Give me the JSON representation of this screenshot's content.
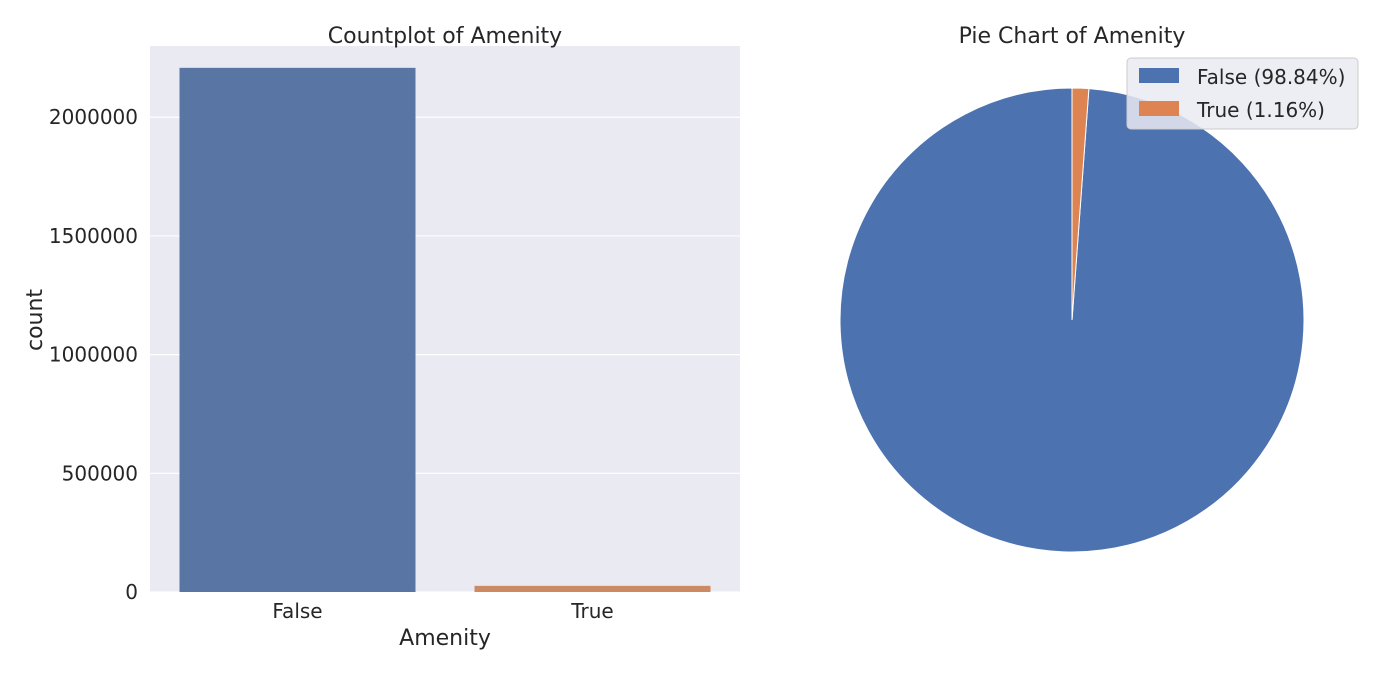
{
  "chart_data": [
    {
      "type": "bar",
      "title": "Countplot of Amenity",
      "xlabel": "Amenity",
      "ylabel": "count",
      "categories": [
        "False",
        "True"
      ],
      "values": [
        2208000,
        25900
      ],
      "colors": [
        "#5975a4",
        "#cc8963"
      ],
      "ylim": [
        0,
        2300000
      ],
      "yticks": [
        0,
        500000,
        1000000,
        1500000,
        2000000
      ],
      "ytick_labels": [
        "0",
        "500000",
        "1000000",
        "1500000",
        "2000000"
      ],
      "grid": true,
      "background": "#eaeaf2"
    },
    {
      "type": "pie",
      "title": "Pie Chart of Amenity",
      "labels": [
        "False",
        "True"
      ],
      "values": [
        98.84,
        1.16
      ],
      "legend": [
        "False (98.84%)",
        "True (1.16%)"
      ],
      "colors": [
        "#4c72b0",
        "#dd8452"
      ],
      "legend_position": "top-right"
    }
  ]
}
